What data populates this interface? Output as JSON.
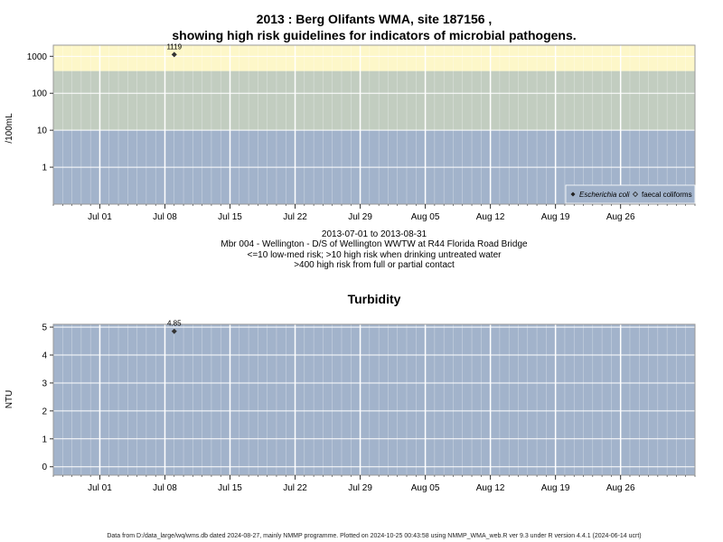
{
  "colors": {
    "high_band": "#fdf7c9",
    "mid_band": "#c2cdc0",
    "low_band": "#a2b3cb",
    "grid": "#ffffff",
    "point": "#333333"
  },
  "footer": "Data from D:/data_large/wq/wms.db dated 2024-08-27, mainly NMMP programme. Plotted on 2024-10-25 00:43:58 using NMMP_WMA_web.R ver 9.3 under R version 4.4.1 (2024-06-14 ucrt)",
  "chart_data": [
    {
      "type": "scatter",
      "title_line1": "2013 : Berg Olifants WMA, site 187156 ,",
      "title_line2": "showing high risk guidelines for indicators of microbial pathogens.",
      "ylabel": "/100mL",
      "y_scale": "log",
      "ylim": [
        0.1,
        2000
      ],
      "y_ticks": [
        1,
        10,
        100,
        1000
      ],
      "y_tick_labels": [
        "1",
        "10",
        "100",
        "1000"
      ],
      "x_ticks": [
        "2013-07-01",
        "2013-07-08",
        "2013-07-15",
        "2013-07-22",
        "2013-07-29",
        "2013-08-05",
        "2013-08-12",
        "2013-08-19",
        "2013-08-26"
      ],
      "x_tick_labels": [
        "Jul 01",
        "Jul 08",
        "Jul 15",
        "Jul 22",
        "Jul 29",
        "Aug 05",
        "Aug 12",
        "Aug 19",
        "Aug 26"
      ],
      "xlim": [
        "2013-06-26",
        "2013-09-03"
      ],
      "bands": [
        {
          "from": 0.1,
          "to": 10,
          "color": "#a2b3cb"
        },
        {
          "from": 10,
          "to": 400,
          "color": "#c2cdc0"
        },
        {
          "from": 400,
          "to": 2000,
          "color": "#fdf7c9"
        }
      ],
      "series": [
        {
          "name": "Escherichia coli",
          "marker": "diamond",
          "points": [
            {
              "x": "2013-07-09",
              "y": 1119,
              "label": "1119"
            }
          ]
        },
        {
          "name": "faecal coliforms",
          "marker": "open-diamond",
          "points": []
        }
      ],
      "legend_placement": "bottom-right",
      "caption": [
        "2013-07-01 to 2013-08-31",
        "Mbr 004 - Wellington - D/S of Wellington WWTW at R44 Florida Road Bridge",
        "<=10 low-med risk; >10 high risk when drinking untreated water",
        ">400 high risk from full or partial contact"
      ]
    },
    {
      "type": "scatter",
      "title": "Turbidity",
      "ylabel": "NTU",
      "ylim": [
        -0.3,
        5.1
      ],
      "y_ticks": [
        0,
        1,
        2,
        3,
        4,
        5
      ],
      "y_tick_labels": [
        "0",
        "1",
        "2",
        "3",
        "4",
        "5"
      ],
      "x_ticks": [
        "2013-07-01",
        "2013-07-08",
        "2013-07-15",
        "2013-07-22",
        "2013-07-29",
        "2013-08-05",
        "2013-08-12",
        "2013-08-19",
        "2013-08-26"
      ],
      "x_tick_labels": [
        "Jul 01",
        "Jul 08",
        "Jul 15",
        "Jul 22",
        "Jul 29",
        "Aug 05",
        "Aug 12",
        "Aug 19",
        "Aug 26"
      ],
      "xlim": [
        "2013-06-26",
        "2013-09-03"
      ],
      "series": [
        {
          "marker": "diamond",
          "points": [
            {
              "x": "2013-07-09",
              "y": 4.85,
              "label": "4.85"
            }
          ]
        }
      ]
    }
  ]
}
